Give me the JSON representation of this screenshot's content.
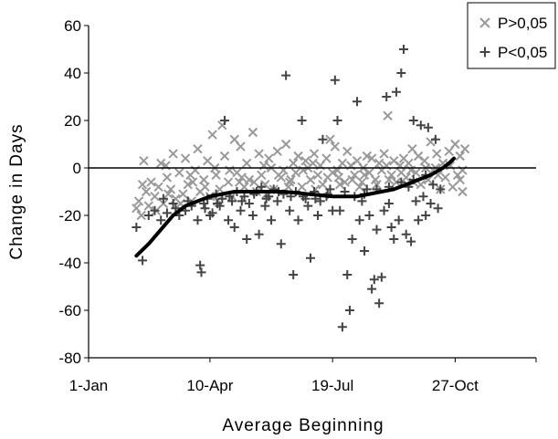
{
  "chart_data": {
    "type": "scatter",
    "title": "",
    "xlabel": "Average Beginning",
    "ylabel": "Change in Days",
    "xlim": [
      1,
      366
    ],
    "ylim": [
      -80,
      60
    ],
    "x_ticks": [
      {
        "label": "1-Jan",
        "day": 1
      },
      {
        "label": "10-Apr",
        "day": 100
      },
      {
        "label": "19-Jul",
        "day": 200
      },
      {
        "label": "27-Oct",
        "day": 300
      }
    ],
    "y_ticks": [
      60,
      40,
      20,
      0,
      -20,
      -40,
      -60,
      -80
    ],
    "zero_line": true,
    "grid": false,
    "legend": {
      "placement": "top-right",
      "entries": [
        {
          "label": "P>0,05",
          "marker": "x",
          "color": "#999999"
        },
        {
          "label": "P<0,05",
          "marker": "+",
          "color": "#444444"
        }
      ]
    },
    "series": [
      {
        "name": "P>0,05",
        "marker": "x",
        "color": "#999999",
        "points": [
          [
            40,
            -17
          ],
          [
            42,
            -14
          ],
          [
            44,
            -20
          ],
          [
            46,
            3
          ],
          [
            48,
            -10
          ],
          [
            50,
            -16
          ],
          [
            52,
            -6
          ],
          [
            55,
            -12
          ],
          [
            58,
            -8
          ],
          [
            60,
            2
          ],
          [
            62,
            -15
          ],
          [
            65,
            -4
          ],
          [
            68,
            -9
          ],
          [
            70,
            6
          ],
          [
            72,
            -13
          ],
          [
            75,
            -2
          ],
          [
            78,
            -11
          ],
          [
            80,
            4
          ],
          [
            82,
            -7
          ],
          [
            85,
            -14
          ],
          [
            88,
            -1
          ],
          [
            90,
            8
          ],
          [
            92,
            -10
          ],
          [
            95,
            -5
          ],
          [
            98,
            3
          ],
          [
            100,
            -12
          ],
          [
            102,
            14
          ],
          [
            105,
            -3
          ],
          [
            108,
            -9
          ],
          [
            110,
            18
          ],
          [
            112,
            5
          ],
          [
            115,
            -6
          ],
          [
            118,
            -12
          ],
          [
            120,
            12
          ],
          [
            122,
            -2
          ],
          [
            125,
            9
          ],
          [
            128,
            -8
          ],
          [
            130,
            2
          ],
          [
            132,
            -5
          ],
          [
            135,
            15
          ],
          [
            138,
            -10
          ],
          [
            140,
            6
          ],
          [
            142,
            -3
          ],
          [
            145,
            -7
          ],
          [
            148,
            4
          ],
          [
            150,
            0
          ],
          [
            152,
            -9
          ],
          [
            155,
            7
          ],
          [
            158,
            -4
          ],
          [
            160,
            -1
          ],
          [
            162,
            10
          ],
          [
            165,
            -6
          ],
          [
            168,
            2
          ],
          [
            170,
            -2
          ],
          [
            172,
            5
          ],
          [
            175,
            -8
          ],
          [
            178,
            3
          ],
          [
            180,
            0
          ],
          [
            182,
            -5
          ],
          [
            185,
            6
          ],
          [
            188,
            -3
          ],
          [
            190,
            1
          ],
          [
            192,
            -7
          ],
          [
            195,
            4
          ],
          [
            198,
            12
          ],
          [
            200,
            -2
          ],
          [
            202,
            9
          ],
          [
            205,
            -4
          ],
          [
            208,
            2
          ],
          [
            210,
            -6
          ],
          [
            212,
            7
          ],
          [
            215,
            1
          ],
          [
            218,
            -3
          ],
          [
            220,
            3
          ],
          [
            222,
            -8
          ],
          [
            225,
            0
          ],
          [
            228,
            5
          ],
          [
            230,
            -2
          ],
          [
            232,
            4
          ],
          [
            235,
            -5
          ],
          [
            238,
            2
          ],
          [
            240,
            -1
          ],
          [
            242,
            6
          ],
          [
            245,
            22
          ],
          [
            248,
            -3
          ],
          [
            250,
            3
          ],
          [
            252,
            -6
          ],
          [
            255,
            1
          ],
          [
            258,
            4
          ],
          [
            260,
            -4
          ],
          [
            262,
            2
          ],
          [
            265,
            8
          ],
          [
            268,
            -2
          ],
          [
            270,
            5
          ],
          [
            272,
            -7
          ],
          [
            275,
            3
          ],
          [
            278,
            -5
          ],
          [
            280,
            11
          ],
          [
            282,
            -1
          ],
          [
            285,
            6
          ],
          [
            288,
            -9
          ],
          [
            290,
            2
          ],
          [
            292,
            -4
          ],
          [
            295,
            7
          ],
          [
            298,
            -8
          ],
          [
            300,
            10
          ],
          [
            302,
            -3
          ],
          [
            304,
            5
          ],
          [
            306,
            -10
          ],
          [
            308,
            8
          ],
          [
            45,
            -7
          ],
          [
            56,
            -18
          ],
          [
            66,
            -11
          ],
          [
            76,
            -15
          ],
          [
            86,
            -6
          ],
          [
            96,
            -8
          ],
          [
            106,
            -14
          ],
          [
            116,
            -1
          ],
          [
            126,
            -4
          ],
          [
            136,
            -6
          ],
          [
            146,
            -11
          ],
          [
            156,
            -3
          ],
          [
            166,
            -5
          ],
          [
            176,
            -1
          ],
          [
            186,
            -9
          ],
          [
            196,
            -4
          ],
          [
            206,
            -7
          ],
          [
            216,
            -5
          ],
          [
            226,
            -3
          ],
          [
            236,
            -7
          ],
          [
            246,
            -5
          ],
          [
            256,
            -2
          ],
          [
            266,
            -6
          ],
          [
            276,
            0
          ],
          [
            286,
            -3
          ],
          [
            296,
            1
          ],
          [
            306,
            -1
          ],
          [
            64,
            1
          ],
          [
            84,
            -3
          ],
          [
            104,
            0
          ],
          [
            124,
            -6
          ],
          [
            144,
            1
          ],
          [
            164,
            -8
          ],
          [
            184,
            2
          ],
          [
            204,
            -1
          ],
          [
            224,
            -6
          ],
          [
            244,
            1
          ],
          [
            264,
            -1
          ],
          [
            284,
            0
          ],
          [
            304,
            -5
          ]
        ]
      },
      {
        "name": "P<0,05",
        "marker": "+",
        "color": "#444444",
        "points": [
          [
            40,
            -25
          ],
          [
            45,
            -39
          ],
          [
            50,
            -20
          ],
          [
            55,
            -18
          ],
          [
            60,
            -22
          ],
          [
            65,
            -19
          ],
          [
            70,
            -15
          ],
          [
            75,
            -20
          ],
          [
            80,
            -18
          ],
          [
            85,
            -16
          ],
          [
            90,
            -22
          ],
          [
            92,
            -41
          ],
          [
            93,
            -44
          ],
          [
            95,
            -15
          ],
          [
            98,
            -13
          ],
          [
            100,
            -20
          ],
          [
            102,
            -19
          ],
          [
            105,
            -11
          ],
          [
            108,
            -16
          ],
          [
            110,
            -13
          ],
          [
            112,
            20
          ],
          [
            115,
            -22
          ],
          [
            118,
            -14
          ],
          [
            120,
            -25
          ],
          [
            122,
            -10
          ],
          [
            125,
            -18
          ],
          [
            128,
            -12
          ],
          [
            130,
            -30
          ],
          [
            132,
            -15
          ],
          [
            135,
            -20
          ],
          [
            138,
            -10
          ],
          [
            140,
            -28
          ],
          [
            142,
            -8
          ],
          [
            145,
            -16
          ],
          [
            148,
            -12
          ],
          [
            150,
            -22
          ],
          [
            152,
            -9
          ],
          [
            155,
            -14
          ],
          [
            158,
            -32
          ],
          [
            160,
            -11
          ],
          [
            162,
            39
          ],
          [
            165,
            -18
          ],
          [
            168,
            -45
          ],
          [
            170,
            -10
          ],
          [
            172,
            -22
          ],
          [
            175,
            20
          ],
          [
            178,
            -13
          ],
          [
            180,
            -16
          ],
          [
            182,
            -38
          ],
          [
            185,
            -10
          ],
          [
            188,
            -20
          ],
          [
            190,
            -14
          ],
          [
            192,
            12
          ],
          [
            195,
            -12
          ],
          [
            198,
            -9
          ],
          [
            200,
            -18
          ],
          [
            202,
            37
          ],
          [
            204,
            20
          ],
          [
            206,
            -18
          ],
          [
            208,
            -67
          ],
          [
            210,
            -10
          ],
          [
            212,
            -45
          ],
          [
            214,
            -60
          ],
          [
            216,
            -30
          ],
          [
            218,
            -12
          ],
          [
            220,
            28
          ],
          [
            222,
            -22
          ],
          [
            224,
            -14
          ],
          [
            226,
            -35
          ],
          [
            228,
            -9
          ],
          [
            230,
            -20
          ],
          [
            232,
            -51
          ],
          [
            234,
            -47
          ],
          [
            236,
            -26
          ],
          [
            238,
            -57
          ],
          [
            240,
            -46
          ],
          [
            242,
            -18
          ],
          [
            244,
            30
          ],
          [
            246,
            -15
          ],
          [
            248,
            -25
          ],
          [
            250,
            -30
          ],
          [
            252,
            32
          ],
          [
            254,
            -22
          ],
          [
            256,
            40
          ],
          [
            258,
            50
          ],
          [
            260,
            -28
          ],
          [
            262,
            -8
          ],
          [
            264,
            -31
          ],
          [
            266,
            20
          ],
          [
            268,
            -14
          ],
          [
            270,
            -22
          ],
          [
            272,
            18
          ],
          [
            274,
            -12
          ],
          [
            276,
            -20
          ],
          [
            278,
            17
          ],
          [
            280,
            -15
          ],
          [
            282,
            -7
          ],
          [
            284,
            12
          ],
          [
            286,
            -17
          ],
          [
            288,
            -9
          ],
          [
            62,
            -13
          ],
          [
            72,
            -17
          ],
          [
            82,
            -14
          ],
          [
            96,
            -17
          ],
          [
            106,
            -15
          ],
          [
            116,
            -12
          ],
          [
            126,
            -14
          ],
          [
            136,
            -11
          ],
          [
            146,
            -13
          ],
          [
            156,
            -10
          ],
          [
            166,
            -12
          ],
          [
            176,
            -12
          ],
          [
            186,
            -13
          ],
          [
            196,
            -11
          ],
          [
            226,
            -11
          ],
          [
            236,
            -9
          ],
          [
            246,
            -8
          ],
          [
            256,
            -6
          ],
          [
            266,
            -5
          ],
          [
            276,
            -3
          ]
        ]
      },
      {
        "name": "",
        "type": "line",
        "color": "#000000",
        "points": [
          [
            40,
            -37
          ],
          [
            50,
            -32
          ],
          [
            60,
            -26
          ],
          [
            70,
            -20
          ],
          [
            80,
            -16
          ],
          [
            90,
            -14
          ],
          [
            100,
            -12
          ],
          [
            110,
            -11
          ],
          [
            120,
            -10
          ],
          [
            130,
            -10
          ],
          [
            140,
            -10
          ],
          [
            150,
            -10
          ],
          [
            160,
            -10
          ],
          [
            170,
            -10.5
          ],
          [
            180,
            -11
          ],
          [
            190,
            -11.5
          ],
          [
            200,
            -12
          ],
          [
            210,
            -12
          ],
          [
            220,
            -12
          ],
          [
            230,
            -11
          ],
          [
            240,
            -10
          ],
          [
            250,
            -9
          ],
          [
            260,
            -7
          ],
          [
            270,
            -5
          ],
          [
            280,
            -3
          ],
          [
            290,
            0
          ],
          [
            295,
            2
          ],
          [
            299,
            4
          ]
        ]
      }
    ]
  }
}
